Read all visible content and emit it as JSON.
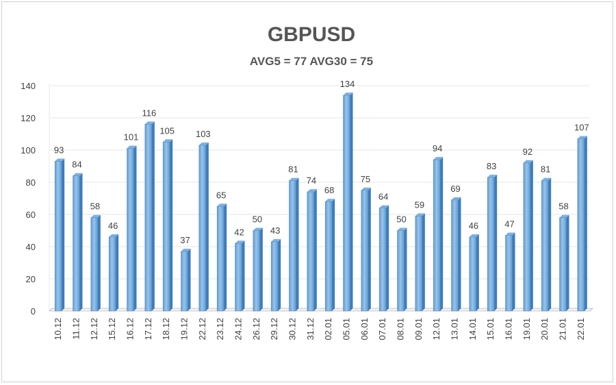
{
  "chart_data": {
    "type": "bar",
    "title": "GBPUSD",
    "subtitle": "AVG5 = 77 AVG30 = 75",
    "xlabel": "",
    "ylabel": "",
    "ylim": [
      0,
      140
    ],
    "yticks": [
      0,
      20,
      40,
      60,
      80,
      100,
      120,
      140
    ],
    "grid": true,
    "legend": "none",
    "categories": [
      "10.12",
      "11.12",
      "12.12",
      "15.12",
      "16.12",
      "17.12",
      "18.12",
      "19.12",
      "22.12",
      "23.12",
      "24.12",
      "26.12",
      "29.12",
      "30.12",
      "31.12",
      "02.01",
      "05.01",
      "06.01",
      "07.01",
      "08.01",
      "09.01",
      "12.01",
      "13.01",
      "14.01",
      "15.01",
      "16.01",
      "19.01",
      "20.01",
      "21.01",
      "22.01"
    ],
    "values": [
      93,
      84,
      58,
      46,
      101,
      116,
      105,
      37,
      103,
      65,
      42,
      50,
      43,
      81,
      74,
      68,
      134,
      75,
      64,
      50,
      59,
      94,
      69,
      46,
      83,
      47,
      92,
      81,
      58,
      107
    ],
    "colors": {
      "bar_fill": "#5b9bd5",
      "bar_light": "#9cc3e8",
      "bar_side": "#3f7cb8",
      "bar_top": "#7fb1e0",
      "grid": "#e4e4e4",
      "axis": "#9a9a9a",
      "text": "#404040",
      "title": "#555555"
    }
  }
}
